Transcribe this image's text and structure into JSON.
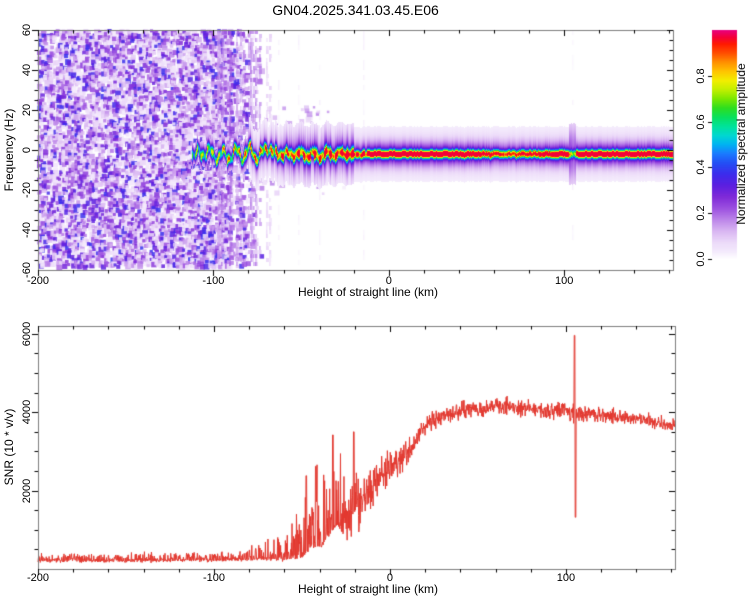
{
  "title": "GN04.2025.341.03.45.E06",
  "style": {
    "background": "#ffffff",
    "frame_color": "#7d7d7d",
    "tick_color": "#000000",
    "snr_line_color": "#e3382f"
  },
  "chart_data": [
    {
      "type": "heatmap",
      "title": "GN04.2025.341.03.45.E06",
      "xlabel": "Height of straight line (km)",
      "ylabel": "Frequency (Hz)",
      "xlim": [
        -200,
        162
      ],
      "ylim": [
        -60,
        60
      ],
      "xticks_major": [
        -200,
        -100,
        0,
        100
      ],
      "xtick_minor_step": 20,
      "yticks_major": [
        -60,
        -40,
        -20,
        0,
        20,
        40,
        60
      ],
      "ytick_minor_step": 5,
      "grid": false,
      "colorbar": {
        "label": "Normalized spectral amplitude",
        "tick_labels": [
          "0.0",
          "0.2",
          "0.4",
          "0.6",
          "0.8"
        ],
        "tick_values": [
          0.0,
          0.2,
          0.4,
          0.6,
          0.8
        ],
        "range": [
          0,
          1
        ]
      },
      "colormap_stops": [
        [
          0.0,
          "#fefdff"
        ],
        [
          0.03,
          "#f4ebfc"
        ],
        [
          0.07,
          "#ecdaf9"
        ],
        [
          0.12,
          "#d9b6f2"
        ],
        [
          0.17,
          "#bc85e9"
        ],
        [
          0.22,
          "#9c50e0"
        ],
        [
          0.27,
          "#7f2ad8"
        ],
        [
          0.32,
          "#5c1fe0"
        ],
        [
          0.37,
          "#3c2cec"
        ],
        [
          0.42,
          "#2350f5"
        ],
        [
          0.46,
          "#1a7bff"
        ],
        [
          0.5,
          "#00b3f2"
        ],
        [
          0.54,
          "#00d8d0"
        ],
        [
          0.58,
          "#00e39a"
        ],
        [
          0.62,
          "#09e05c"
        ],
        [
          0.66,
          "#2ede1f"
        ],
        [
          0.7,
          "#7ae800"
        ],
        [
          0.74,
          "#c2ef00"
        ],
        [
          0.78,
          "#f2ee00"
        ],
        [
          0.82,
          "#ffc400"
        ],
        [
          0.86,
          "#ff9000"
        ],
        [
          0.9,
          "#ff5000"
        ],
        [
          0.94,
          "#ff1a00"
        ],
        [
          0.97,
          "#f40037"
        ],
        [
          1.0,
          "#e8007d"
        ]
      ],
      "noise_field": {
        "x_start": -200,
        "x_end_dense": -92,
        "x_end_fade": -70,
        "value_range": [
          0.03,
          0.38
        ]
      },
      "signal_trace": {
        "center_frequency_hz": -1.8,
        "points": [
          [
            -112,
            -1.5,
            0.55
          ],
          [
            -108,
            -2.5,
            0.6
          ],
          [
            -104,
            0.5,
            0.62
          ],
          [
            -100,
            -3.5,
            0.65
          ],
          [
            -96,
            -1,
            0.68
          ],
          [
            -92,
            -4,
            0.7
          ],
          [
            -88,
            0,
            0.72
          ],
          [
            -84,
            -3.5,
            0.72
          ],
          [
            -80,
            0.5,
            0.74
          ],
          [
            -76,
            -3.5,
            0.75
          ],
          [
            -72,
            -1,
            0.78
          ],
          [
            -68,
            1.5,
            0.76
          ],
          [
            -64,
            -3,
            0.8
          ],
          [
            -60,
            -1,
            0.82
          ],
          [
            -56,
            -3,
            0.8
          ],
          [
            -52,
            -1,
            0.84
          ],
          [
            -48,
            -3,
            0.84
          ],
          [
            -44,
            -1.5,
            0.86
          ],
          [
            -40,
            -3.5,
            0.86
          ],
          [
            -36,
            -1,
            0.88
          ],
          [
            -32,
            -2.5,
            0.9
          ],
          [
            -28,
            -1.5,
            0.9
          ],
          [
            -24,
            -2,
            0.92
          ],
          [
            -20,
            -2,
            0.92
          ],
          [
            -16,
            -1.9,
            0.93
          ],
          [
            -12,
            -1.8,
            0.94
          ],
          [
            -8,
            -1.8,
            0.94
          ],
          [
            -4,
            -1.8,
            0.94
          ],
          [
            0,
            -1.8,
            0.94
          ],
          [
            10,
            -1.8,
            0.94
          ],
          [
            20,
            -1.8,
            0.94
          ],
          [
            30,
            -1.8,
            0.93
          ],
          [
            40,
            -1.8,
            0.92
          ],
          [
            50,
            -1.8,
            0.89
          ],
          [
            55,
            -1.8,
            0.82
          ],
          [
            60,
            -1.8,
            0.76
          ],
          [
            65,
            -1.8,
            0.73
          ],
          [
            70,
            -1.8,
            0.72
          ],
          [
            75,
            -1.8,
            0.74
          ],
          [
            80,
            -1.8,
            0.76
          ],
          [
            85,
            -1.8,
            0.8
          ],
          [
            90,
            -1.8,
            0.86
          ],
          [
            95,
            -1.8,
            0.9
          ],
          [
            100,
            -1.8,
            0.92
          ],
          [
            103,
            -1.8,
            0.85
          ],
          [
            105,
            -1.8,
            0.6
          ],
          [
            107,
            -1.8,
            0.86
          ],
          [
            110,
            -1.8,
            0.92
          ],
          [
            120,
            -1.8,
            0.93
          ],
          [
            130,
            -1.8,
            0.93
          ],
          [
            140,
            -1.8,
            0.93
          ],
          [
            150,
            -1.8,
            0.93
          ],
          [
            162,
            -1.8,
            0.93
          ]
        ]
      },
      "disturbance_h": 104.5
    },
    {
      "type": "line",
      "xlabel": "Height of straight line (km)",
      "ylabel": "SNR (10 * v/v)",
      "xlim": [
        -200,
        162
      ],
      "ylim": [
        0,
        6200
      ],
      "xticks_major": [
        -200,
        -100,
        0,
        100
      ],
      "xtick_minor_step": 20,
      "yticks_major": [
        2000,
        4000,
        6000
      ],
      "ytick_minor_step": 500,
      "grid": false,
      "line_color": "#e3382f",
      "envelope_points": [
        [
          -200,
          230,
          80
        ],
        [
          -150,
          235,
          85
        ],
        [
          -110,
          240,
          90
        ],
        [
          -90,
          255,
          105
        ],
        [
          -80,
          285,
          150
        ],
        [
          -72,
          305,
          210
        ],
        [
          -65,
          335,
          300
        ],
        [
          -58,
          385,
          430
        ],
        [
          -52,
          440,
          560
        ],
        [
          -48,
          620,
          820
        ],
        [
          -45,
          820,
          950
        ],
        [
          -42,
          920,
          1150
        ],
        [
          -38,
          880,
          950
        ],
        [
          -34,
          1250,
          1150
        ],
        [
          -30,
          1450,
          1050
        ],
        [
          -26,
          1150,
          950
        ],
        [
          -22,
          1550,
          1050
        ],
        [
          -18,
          1750,
          950
        ],
        [
          -14,
          1950,
          850
        ],
        [
          -10,
          2150,
          750
        ],
        [
          -6,
          2350,
          650
        ],
        [
          -2,
          2480,
          580
        ],
        [
          2,
          2620,
          520
        ],
        [
          6,
          2780,
          500
        ],
        [
          10,
          2980,
          470
        ],
        [
          15,
          3280,
          440
        ],
        [
          20,
          3580,
          410
        ],
        [
          25,
          3780,
          390
        ],
        [
          30,
          3920,
          360
        ],
        [
          40,
          4040,
          330
        ],
        [
          50,
          4090,
          310
        ],
        [
          60,
          4140,
          310
        ],
        [
          70,
          4140,
          300
        ],
        [
          80,
          4110,
          300
        ],
        [
          90,
          4070,
          320
        ],
        [
          100,
          4020,
          340
        ],
        [
          104,
          4000,
          350
        ],
        [
          108,
          3970,
          330
        ],
        [
          115,
          3950,
          280
        ],
        [
          125,
          3900,
          260
        ],
        [
          135,
          3850,
          240
        ],
        [
          145,
          3790,
          240
        ],
        [
          155,
          3710,
          240
        ],
        [
          162,
          3670,
          240
        ]
      ],
      "spikes": [
        {
          "h": -47.6,
          "y": 2380
        },
        {
          "h": -42.2,
          "y": 2620
        },
        {
          "h": -32.4,
          "y": 3420
        },
        {
          "h": -20.6,
          "y": 3500
        },
        {
          "h": 105.0,
          "y": 5960
        },
        {
          "h": 105.5,
          "y": 1320
        }
      ]
    }
  ]
}
